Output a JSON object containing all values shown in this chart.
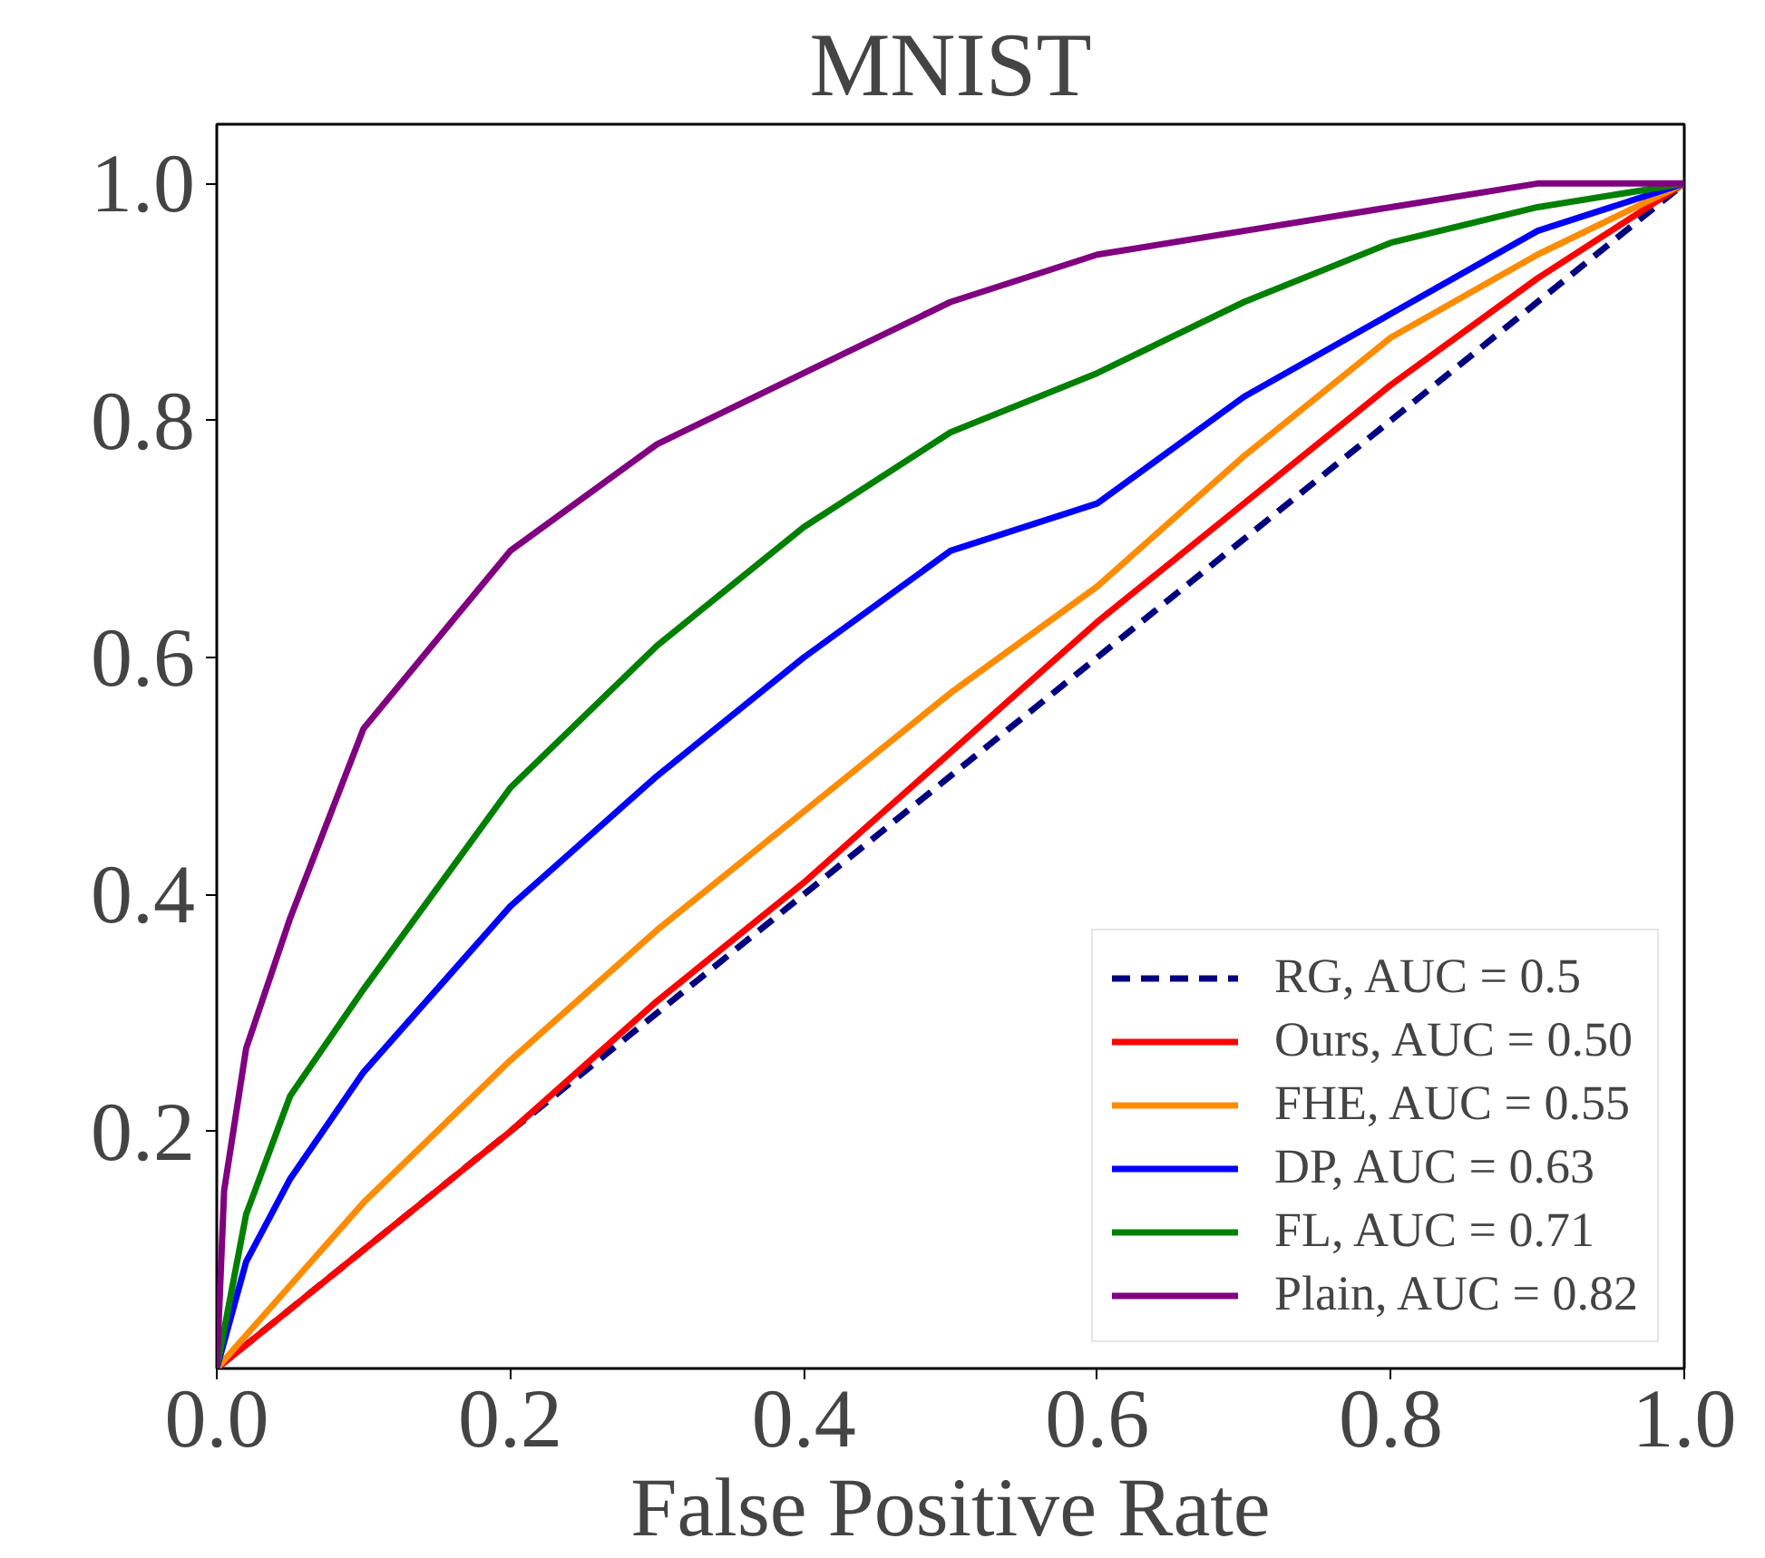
{
  "chart_data": {
    "type": "line",
    "title": "MNIST",
    "xlabel": "False Positive Rate",
    "xlim": [
      0,
      1
    ],
    "ylim": [
      0,
      1.05
    ],
    "xticks": [
      {
        "value": 0,
        "label": "0.0"
      },
      0.2,
      0.4,
      0.6,
      0.8,
      {
        "value": 1,
        "label": "1.0"
      }
    ],
    "yticks": [
      0.2,
      0.4,
      0.6,
      0.8,
      {
        "value": 1,
        "label": "1.0"
      }
    ],
    "grid": false,
    "legend": "bottom right",
    "marker": "none",
    "series": [
      {
        "name": "RG, AUC = 0.5",
        "color": "#000080",
        "line_style": "dashed",
        "x": [
          0,
          1
        ],
        "values": [
          0,
          1
        ]
      },
      {
        "name": "Ours, AUC = 0.50",
        "color": "#ff0000",
        "x": [
          0,
          0.1,
          0.2,
          0.3,
          0.4,
          0.5,
          0.6,
          0.7,
          0.8,
          0.9,
          1
        ],
        "values": [
          0,
          0.1,
          0.2,
          0.31,
          0.41,
          0.52,
          0.63,
          0.73,
          0.83,
          0.92,
          1
        ]
      },
      {
        "name": "FHE, AUC = 0.55",
        "color": "#ff8c00",
        "x": [
          0,
          0.05,
          0.1,
          0.2,
          0.3,
          0.4,
          0.5,
          0.6,
          0.7,
          0.8,
          0.9,
          1
        ],
        "values": [
          0,
          0.07,
          0.14,
          0.26,
          0.37,
          0.47,
          0.57,
          0.66,
          0.77,
          0.87,
          0.94,
          1
        ]
      },
      {
        "name": "DP, AUC = 0.63",
        "color": "#0000ff",
        "x": [
          0,
          0.02,
          0.05,
          0.1,
          0.2,
          0.3,
          0.4,
          0.5,
          0.6,
          0.7,
          0.8,
          0.9,
          1
        ],
        "values": [
          0,
          0.09,
          0.16,
          0.25,
          0.39,
          0.5,
          0.6,
          0.69,
          0.73,
          0.82,
          0.89,
          0.96,
          1
        ]
      },
      {
        "name": "FL, AUC = 0.71",
        "color": "#008000",
        "x": [
          0,
          0.02,
          0.05,
          0.1,
          0.2,
          0.3,
          0.4,
          0.5,
          0.6,
          0.7,
          0.8,
          0.9,
          1
        ],
        "values": [
          0,
          0.13,
          0.23,
          0.32,
          0.49,
          0.61,
          0.71,
          0.79,
          0.84,
          0.9,
          0.95,
          0.98,
          1
        ]
      },
      {
        "name": "Plain, AUC = 0.82",
        "color": "#800080",
        "x": [
          0,
          0.005,
          0.02,
          0.05,
          0.1,
          0.2,
          0.3,
          0.4,
          0.5,
          0.6,
          0.7,
          0.8,
          0.9,
          1
        ],
        "values": [
          0,
          0.15,
          0.27,
          0.38,
          0.54,
          0.69,
          0.78,
          0.84,
          0.9,
          0.94,
          0.96,
          0.98,
          1,
          1
        ]
      }
    ]
  }
}
